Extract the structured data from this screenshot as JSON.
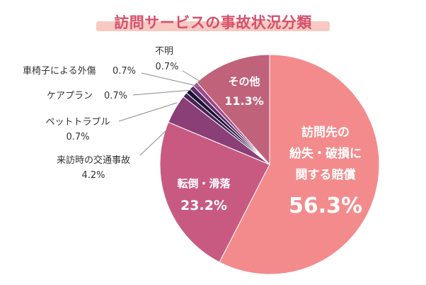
{
  "chart_data": {
    "type": "pie",
    "title": "訪問サービスの事故状況分類",
    "slices": [
      {
        "label_lines": [
          "訪問先の",
          "紛失・破損に",
          "関する賠償"
        ],
        "value_label": "56.3%",
        "value": 56.3,
        "color": "#f38b8c"
      },
      {
        "label_lines": [
          "転倒・滑落"
        ],
        "value_label": "23.2%",
        "value": 23.2,
        "color": "#c85a82"
      },
      {
        "label_lines": [
          "来訪時の交通事故"
        ],
        "value_label": "4.2%",
        "value": 4.2,
        "color": "#8a3f76"
      },
      {
        "label_lines": [
          "ペットトラブル"
        ],
        "value_label": "0.7%",
        "value": 0.7,
        "color": "#4a2258"
      },
      {
        "label_lines": [
          "ケアプラン"
        ],
        "value_label": "0.7%",
        "value": 0.7,
        "color": "#1d1333"
      },
      {
        "label_lines": [
          "車椅子による外傷"
        ],
        "value_label": "0.7%",
        "value": 0.7,
        "color": "#5e2a6a"
      },
      {
        "label_lines": [
          "不明"
        ],
        "value_label": "0.7%",
        "value": 0.7,
        "color": "#9b4b86"
      },
      {
        "label_lines": [
          "その他"
        ],
        "value_label": "11.3%",
        "value": 11.3,
        "color": "#c0627a"
      }
    ]
  },
  "colors": {
    "title": "#d6506a",
    "title_highlight": "#f7c9c2",
    "inside_label": "#ffffff",
    "outside_label": "#333333",
    "leader_line": "#8a8a8a"
  }
}
